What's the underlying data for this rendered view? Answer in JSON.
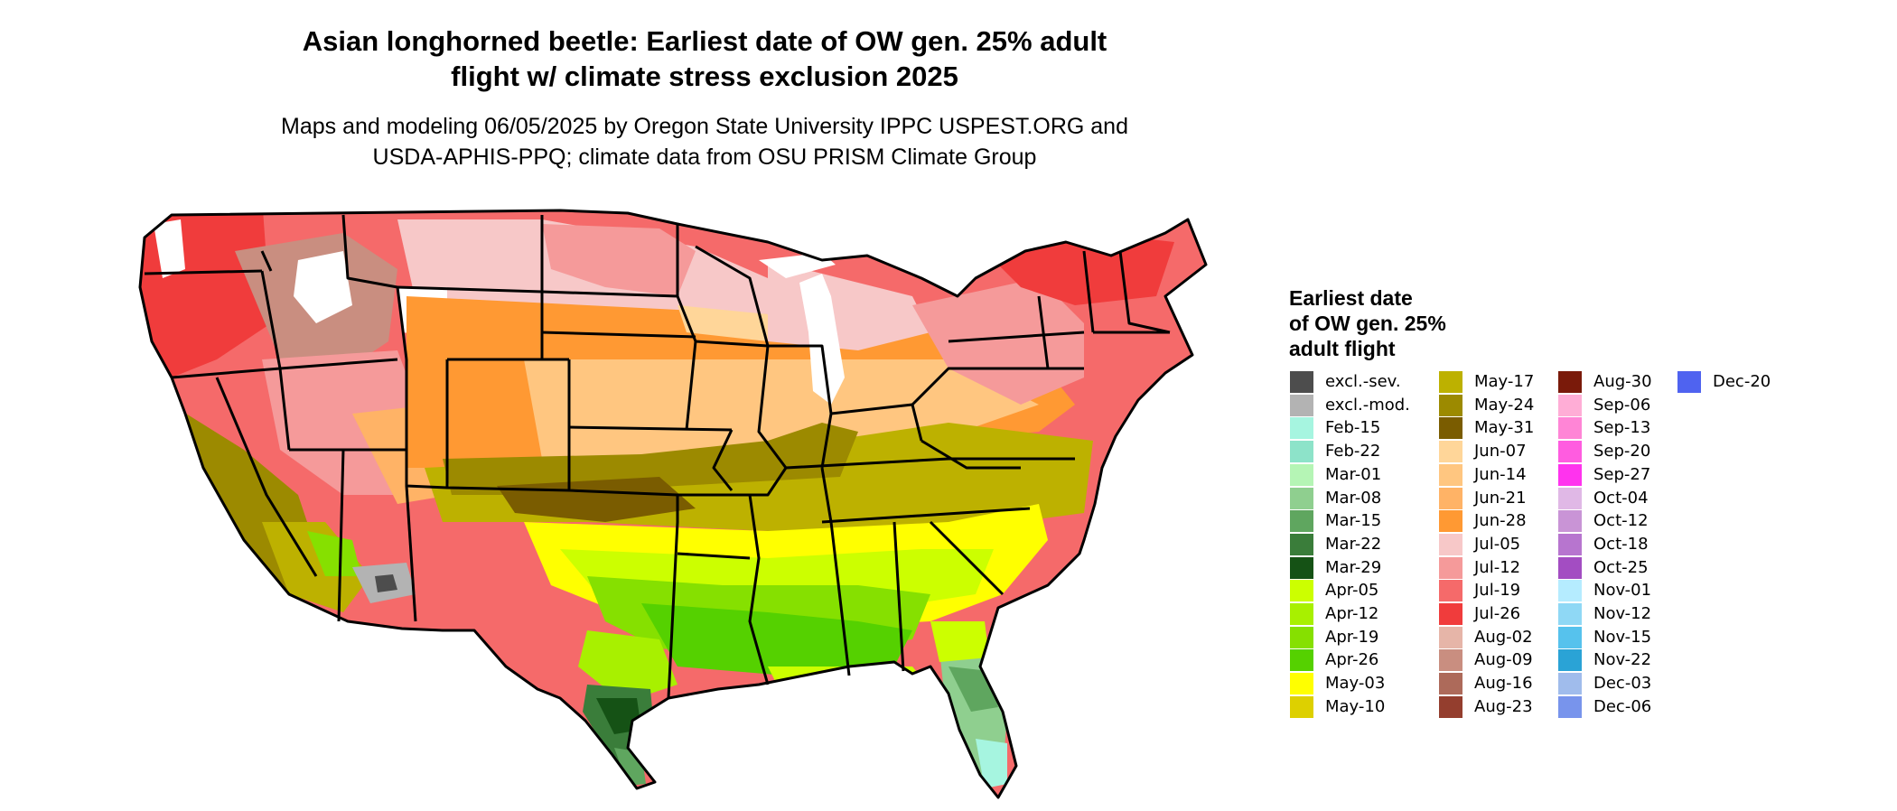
{
  "title_line1": "Asian longhorned beetle: Earliest date of OW gen. 25% adult",
  "title_line2": "flight w/ climate stress exclusion 2025",
  "subtitle_line1": "Maps and modeling 06/05/2025 by Oregon State University IPPC USPEST.ORG and",
  "subtitle_line2": "USDA-APHIS-PPQ; climate data from OSU PRISM Climate Group",
  "legend": {
    "title_line1": "Earliest date",
    "title_line2": "of OW gen. 25%",
    "title_line3": "adult flight",
    "columns": [
      [
        {
          "label": "excl.-sev.",
          "color": "#4d4d4d"
        },
        {
          "label": "excl.-mod.",
          "color": "#b3b3b3"
        },
        {
          "label": "Feb-15",
          "color": "#a6f5e0"
        },
        {
          "label": "Feb-22",
          "color": "#8de3c9"
        },
        {
          "label": "Mar-01",
          "color": "#b5f5b5"
        },
        {
          "label": "Mar-08",
          "color": "#8fcf8f"
        },
        {
          "label": "Mar-15",
          "color": "#5fa65f"
        },
        {
          "label": "Mar-22",
          "color": "#3a7d3a"
        },
        {
          "label": "Mar-29",
          "color": "#155215"
        },
        {
          "label": "Apr-05",
          "color": "#ccff00"
        },
        {
          "label": "Apr-12",
          "color": "#a8f000"
        },
        {
          "label": "Apr-19",
          "color": "#86e000"
        },
        {
          "label": "Apr-26",
          "color": "#55d100"
        },
        {
          "label": "May-03",
          "color": "#ffff00"
        },
        {
          "label": "May-10",
          "color": "#ddd000"
        }
      ],
      [
        {
          "label": "May-17",
          "color": "#bdb100"
        },
        {
          "label": "May-24",
          "color": "#9c8a00"
        },
        {
          "label": "May-31",
          "color": "#7a5c00"
        },
        {
          "label": "Jun-07",
          "color": "#ffd699"
        },
        {
          "label": "Jun-14",
          "color": "#ffc680"
        },
        {
          "label": "Jun-21",
          "color": "#ffb366"
        },
        {
          "label": "Jun-28",
          "color": "#ff9933"
        },
        {
          "label": "Jul-05",
          "color": "#f7c8c8"
        },
        {
          "label": "Jul-12",
          "color": "#f59a9a"
        },
        {
          "label": "Jul-19",
          "color": "#f56a6a"
        },
        {
          "label": "Jul-26",
          "color": "#f03c3c"
        },
        {
          "label": "Aug-02",
          "color": "#e6b5a8"
        },
        {
          "label": "Aug-09",
          "color": "#c98e80"
        },
        {
          "label": "Aug-16",
          "color": "#ad6a5a"
        },
        {
          "label": "Aug-23",
          "color": "#943e2e"
        }
      ],
      [
        {
          "label": "Aug-30",
          "color": "#7a1a0a"
        },
        {
          "label": "Sep-06",
          "color": "#ffadd6"
        },
        {
          "label": "Sep-13",
          "color": "#ff85d6"
        },
        {
          "label": "Sep-20",
          "color": "#ff5ce0"
        },
        {
          "label": "Sep-27",
          "color": "#ff33ee"
        },
        {
          "label": "Oct-04",
          "color": "#e0b8e6"
        },
        {
          "label": "Oct-12",
          "color": "#c994d6"
        },
        {
          "label": "Oct-18",
          "color": "#b775cf"
        },
        {
          "label": "Oct-25",
          "color": "#a34dc2"
        },
        {
          "label": "Nov-01",
          "color": "#b5ecff"
        },
        {
          "label": "Nov-12",
          "color": "#8fd8f5"
        },
        {
          "label": "Nov-15",
          "color": "#56c2ed"
        },
        {
          "label": "Nov-22",
          "color": "#2aa3d6"
        },
        {
          "label": "Dec-03",
          "color": "#a0bcec"
        },
        {
          "label": "Dec-06",
          "color": "#7894ec"
        }
      ],
      [
        {
          "label": "Dec-20",
          "color": "#4f63f0"
        }
      ]
    ]
  }
}
